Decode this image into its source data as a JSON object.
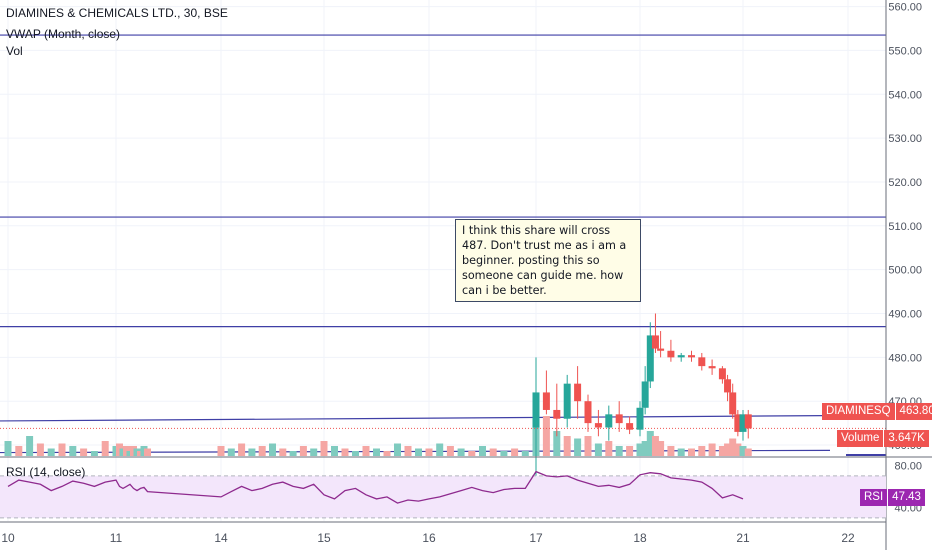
{
  "chart_data": [
    {
      "type": "candlestick",
      "title": "DIAMINES & CHEMICALS LTD., 30, BSE",
      "indicator_labels": [
        "VWAP (Month, close)",
        "Vol"
      ],
      "x_tick_labels": [
        "10",
        "11",
        "14",
        "15",
        "16",
        "17",
        "18",
        "21",
        "22"
      ],
      "y_tick_labels": [
        "560.00",
        "550.00",
        "540.00",
        "530.00",
        "520.00",
        "510.00",
        "500.00",
        "490.00",
        "480.00",
        "470.00",
        "460.00"
      ],
      "ylim": [
        457.5,
        561.5
      ],
      "horizontal_lines": [
        553.5,
        512.0,
        487.0
      ],
      "trend_line": [
        465.5,
        466.8
      ],
      "vwap_line": [
        456.0,
        456.5
      ],
      "last_price": {
        "symbol": "DIAMINESQ",
        "value": "463.80"
      },
      "volume_label": {
        "name": "Volume",
        "value": "3.647K"
      },
      "annotation": "I think this share will cross 487. Don't trust me as i am a beginner. posting this so someone can guide me. how can i be better.",
      "candles": [
        [
          17.0,
          464.0,
          480.0,
          453.0,
          472.0
        ],
        [
          17.1,
          472.0,
          477.0,
          467.0,
          468.0
        ],
        [
          17.2,
          468.0,
          474.0,
          462.0,
          466.0
        ],
        [
          17.3,
          466.0,
          476.0,
          464.0,
          474.0
        ],
        [
          17.4,
          474.0,
          478.0,
          466.0,
          470.0
        ],
        [
          17.5,
          470.0,
          471.5,
          463.0,
          465.0
        ],
        [
          17.6,
          465.0,
          468.0,
          462.0,
          464.0
        ],
        [
          17.7,
          464.0,
          469.0,
          461.0,
          467.0
        ],
        [
          17.8,
          467.0,
          470.0,
          463.0,
          465.0
        ],
        [
          17.9,
          465.0,
          466.5,
          462.5,
          463.5
        ],
        [
          18.0,
          463.5,
          470.0,
          462.0,
          468.5
        ],
        [
          18.05,
          468.5,
          478.0,
          467.0,
          474.5
        ],
        [
          18.1,
          474.5,
          488.0,
          473.0,
          485.0
        ],
        [
          18.15,
          485.0,
          490.0,
          481.0,
          482.0
        ],
        [
          18.2,
          482.0,
          486.0,
          480.0,
          481.5
        ],
        [
          18.3,
          481.5,
          484.0,
          479.0,
          480.0
        ],
        [
          18.4,
          480.0,
          481.0,
          479.0,
          480.5
        ],
        [
          18.5,
          480.5,
          481.5,
          479.0,
          480.0
        ],
        [
          18.6,
          480.0,
          481.0,
          477.0,
          478.0
        ],
        [
          18.7,
          478.0,
          479.5,
          476.0,
          477.5
        ],
        [
          18.8,
          477.5,
          478.0,
          474.0,
          475.0
        ],
        [
          18.85,
          475.0,
          476.0,
          470.0,
          472.0
        ],
        [
          18.9,
          472.0,
          474.0,
          466.0,
          467.0
        ],
        [
          18.95,
          467.0,
          468.0,
          462.0,
          463.0
        ],
        [
          19.0,
          463.0,
          468.0,
          461.0,
          467.0
        ],
        [
          19.05,
          467.0,
          468.0,
          461.5,
          463.8
        ]
      ],
      "volume_series": [
        [
          10.0,
          0.6,
          true
        ],
        [
          10.1,
          0.4,
          false
        ],
        [
          10.2,
          0.8,
          true
        ],
        [
          10.3,
          0.5,
          false
        ],
        [
          10.4,
          0.3,
          true
        ],
        [
          10.5,
          0.5,
          false
        ],
        [
          10.6,
          0.4,
          true
        ],
        [
          10.7,
          0.3,
          false
        ],
        [
          10.8,
          0.2,
          true
        ],
        [
          10.9,
          0.6,
          false
        ],
        [
          11.0,
          0.4,
          true
        ],
        [
          11.1,
          0.5,
          false
        ],
        [
          11.2,
          0.3,
          true
        ],
        [
          11.3,
          0.4,
          false
        ],
        [
          11.4,
          0.2,
          true
        ],
        [
          11.5,
          0.4,
          false
        ],
        [
          11.6,
          0.3,
          true
        ],
        [
          11.7,
          0.2,
          false
        ],
        [
          11.8,
          0.4,
          true
        ],
        [
          11.9,
          0.3,
          false
        ],
        [
          14.0,
          0.4,
          false
        ],
        [
          14.1,
          0.3,
          true
        ],
        [
          14.2,
          0.5,
          false
        ],
        [
          14.3,
          0.3,
          true
        ],
        [
          14.4,
          0.4,
          false
        ],
        [
          14.5,
          0.5,
          true
        ],
        [
          14.6,
          0.3,
          false
        ],
        [
          14.7,
          0.2,
          true
        ],
        [
          14.8,
          0.4,
          false
        ],
        [
          14.9,
          0.3,
          true
        ],
        [
          15.0,
          0.6,
          false
        ],
        [
          15.1,
          0.4,
          true
        ],
        [
          15.2,
          0.3,
          false
        ],
        [
          15.3,
          0.2,
          true
        ],
        [
          15.4,
          0.4,
          false
        ],
        [
          15.5,
          0.3,
          true
        ],
        [
          15.6,
          0.2,
          false
        ],
        [
          15.7,
          0.5,
          true
        ],
        [
          15.8,
          0.4,
          false
        ],
        [
          15.9,
          0.3,
          true
        ],
        [
          16.0,
          0.3,
          false
        ],
        [
          16.1,
          0.5,
          true
        ],
        [
          16.2,
          0.4,
          false
        ],
        [
          16.3,
          0.3,
          true
        ],
        [
          16.4,
          0.2,
          false
        ],
        [
          16.5,
          0.4,
          true
        ],
        [
          16.6,
          0.3,
          false
        ],
        [
          16.7,
          0.2,
          true
        ],
        [
          16.8,
          0.3,
          false
        ],
        [
          16.9,
          0.2,
          true
        ],
        [
          17.0,
          2.2,
          true
        ],
        [
          17.1,
          1.6,
          false
        ],
        [
          17.2,
          1.0,
          true
        ],
        [
          17.3,
          0.8,
          false
        ],
        [
          17.4,
          0.7,
          true
        ],
        [
          17.5,
          0.8,
          false
        ],
        [
          17.6,
          0.5,
          true
        ],
        [
          17.7,
          0.6,
          false
        ],
        [
          17.8,
          0.4,
          true
        ],
        [
          17.9,
          0.4,
          false
        ],
        [
          18.0,
          0.5,
          true
        ],
        [
          18.05,
          0.6,
          true
        ],
        [
          18.1,
          1.0,
          true
        ],
        [
          18.15,
          0.8,
          false
        ],
        [
          18.2,
          0.6,
          false
        ],
        [
          18.3,
          0.4,
          false
        ],
        [
          18.4,
          0.3,
          true
        ],
        [
          18.5,
          0.3,
          false
        ],
        [
          18.6,
          0.4,
          false
        ],
        [
          18.7,
          0.5,
          false
        ],
        [
          18.8,
          0.4,
          false
        ],
        [
          18.85,
          0.5,
          false
        ],
        [
          18.9,
          0.7,
          false
        ],
        [
          18.95,
          0.5,
          false
        ],
        [
          19.0,
          0.4,
          true
        ],
        [
          19.05,
          0.3,
          false
        ]
      ]
    },
    {
      "type": "line",
      "title": "RSI (14, close)",
      "ylim": [
        27,
        87
      ],
      "y_tick_labels": [
        "80.00",
        "40.00"
      ],
      "band": [
        70,
        30
      ],
      "last_value": {
        "name": "RSI",
        "value": "47.43"
      },
      "series": [
        {
          "values": [
            [
              10.0,
              60
            ],
            [
              10.1,
              66
            ],
            [
              10.2,
              64
            ],
            [
              10.3,
              62
            ],
            [
              10.4,
              56
            ],
            [
              10.5,
              60
            ],
            [
              10.6,
              65
            ],
            [
              10.7,
              63
            ],
            [
              10.8,
              60
            ],
            [
              10.9,
              64
            ],
            [
              11.0,
              66
            ],
            [
              11.1,
              60
            ],
            [
              11.2,
              58
            ],
            [
              11.3,
              60
            ],
            [
              11.4,
              62
            ],
            [
              11.5,
              58
            ],
            [
              11.6,
              56
            ],
            [
              11.7,
              58
            ],
            [
              11.8,
              59
            ],
            [
              11.9,
              55
            ],
            [
              14.0,
              50
            ],
            [
              14.1,
              55
            ],
            [
              14.2,
              60
            ],
            [
              14.3,
              56
            ],
            [
              14.4,
              58
            ],
            [
              14.5,
              62
            ],
            [
              14.6,
              64
            ],
            [
              14.7,
              60
            ],
            [
              14.8,
              58
            ],
            [
              14.9,
              62
            ],
            [
              15.0,
              52
            ],
            [
              15.1,
              48
            ],
            [
              15.2,
              56
            ],
            [
              15.3,
              58
            ],
            [
              15.4,
              52
            ],
            [
              15.5,
              48
            ],
            [
              15.6,
              50
            ],
            [
              15.7,
              44
            ],
            [
              15.8,
              47
            ],
            [
              15.9,
              46
            ],
            [
              16.0,
              48
            ],
            [
              16.1,
              50
            ],
            [
              16.2,
              53
            ],
            [
              16.3,
              56
            ],
            [
              16.4,
              59
            ],
            [
              16.5,
              56
            ],
            [
              16.6,
              54
            ],
            [
              16.7,
              57
            ],
            [
              16.8,
              58
            ],
            [
              16.9,
              58
            ],
            [
              17.0,
              74
            ],
            [
              17.1,
              70
            ],
            [
              17.2,
              69
            ],
            [
              17.3,
              70
            ],
            [
              17.4,
              66
            ],
            [
              17.5,
              63
            ],
            [
              17.6,
              60
            ],
            [
              17.7,
              61
            ],
            [
              17.8,
              59
            ],
            [
              17.9,
              62
            ],
            [
              18.0,
              71
            ],
            [
              18.1,
              73
            ],
            [
              18.2,
              72
            ],
            [
              18.3,
              68
            ],
            [
              18.4,
              67
            ],
            [
              18.5,
              66
            ],
            [
              18.6,
              64
            ],
            [
              18.7,
              58
            ],
            [
              18.8,
              49
            ],
            [
              18.9,
              52
            ],
            [
              19.0,
              48
            ]
          ]
        }
      ]
    }
  ]
}
